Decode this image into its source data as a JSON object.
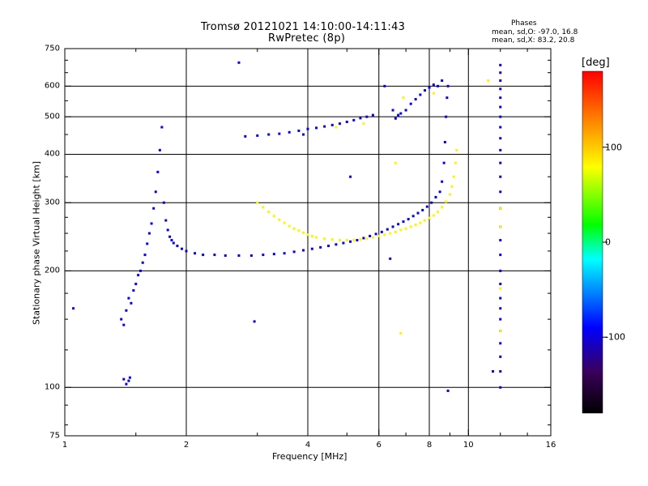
{
  "chart_data": {
    "type": "scatter",
    "title": "Tromsø 20121021 14:10:00-14:11:43",
    "subtitle": "RwPretec (8p)",
    "phase_header": "Phases",
    "stats": [
      "mean, sd,O: -97.0, 16.8",
      "mean, sd,X: 83.2, 20.8"
    ],
    "xlabel": "Frequency [MHz]",
    "ylabel": "Stationary phase Virtual Height [km]",
    "x_scale": "log",
    "y_scale": "log",
    "xlim": [
      1,
      16
    ],
    "ylim": [
      75,
      750
    ],
    "x_ticks": [
      1,
      2,
      4,
      6,
      8,
      10,
      16
    ],
    "y_ticks": [
      75,
      100,
      200,
      300,
      400,
      500,
      600,
      750
    ],
    "x_grid": [
      2,
      4,
      6,
      8,
      10
    ],
    "y_grid": [
      100,
      200,
      300,
      400,
      500,
      600
    ],
    "grid": true,
    "colorbar": {
      "label": "[deg]",
      "range": [
        -180,
        180
      ],
      "ticks": [
        100,
        0,
        -100
      ],
      "tick_labels": [
        "100",
        "0",
        "-100"
      ],
      "colors": [
        "#000000",
        "#3a005a",
        "#0000ff",
        "#00ffff",
        "#00ff00",
        "#ffff00",
        "#ff8000",
        "#ff0000"
      ]
    },
    "series": [
      {
        "mode": "O",
        "phase": -97,
        "points": [
          [
            1.05,
            160
          ],
          [
            1.38,
            150
          ],
          [
            1.4,
            145
          ],
          [
            1.42,
            158
          ],
          [
            1.44,
            170
          ],
          [
            1.46,
            165
          ],
          [
            1.48,
            178
          ],
          [
            1.5,
            185
          ],
          [
            1.52,
            195
          ],
          [
            1.54,
            200
          ],
          [
            1.56,
            210
          ],
          [
            1.58,
            220
          ],
          [
            1.6,
            235
          ],
          [
            1.62,
            250
          ],
          [
            1.64,
            265
          ],
          [
            1.66,
            290
          ],
          [
            1.68,
            320
          ],
          [
            1.7,
            360
          ],
          [
            1.72,
            410
          ],
          [
            1.74,
            470
          ],
          [
            1.76,
            300
          ],
          [
            1.78,
            270
          ],
          [
            1.8,
            255
          ],
          [
            1.82,
            245
          ],
          [
            1.84,
            240
          ],
          [
            1.86,
            236
          ],
          [
            1.9,
            232
          ],
          [
            1.95,
            228
          ],
          [
            2,
            225
          ],
          [
            2.1,
            222
          ],
          [
            2.2,
            220
          ],
          [
            2.35,
            220
          ],
          [
            2.5,
            219
          ],
          [
            2.7,
            219
          ],
          [
            2.9,
            219
          ],
          [
            3.1,
            220
          ],
          [
            3.3,
            221
          ],
          [
            3.5,
            222
          ],
          [
            3.7,
            224
          ],
          [
            3.9,
            226
          ],
          [
            4.1,
            228
          ],
          [
            4.3,
            230
          ],
          [
            4.5,
            232
          ],
          [
            4.7,
            234
          ],
          [
            4.9,
            236
          ],
          [
            5.1,
            238
          ],
          [
            5.3,
            240
          ],
          [
            5.5,
            243
          ],
          [
            5.7,
            246
          ],
          [
            5.9,
            249
          ],
          [
            6.1,
            252
          ],
          [
            6.3,
            256
          ],
          [
            6.5,
            260
          ],
          [
            6.7,
            264
          ],
          [
            6.9,
            268
          ],
          [
            7.1,
            272
          ],
          [
            7.3,
            277
          ],
          [
            7.5,
            282
          ],
          [
            7.7,
            287
          ],
          [
            7.9,
            293
          ],
          [
            8.1,
            300
          ],
          [
            8.3,
            310
          ],
          [
            8.5,
            320
          ],
          [
            8.6,
            340
          ],
          [
            8.7,
            380
          ],
          [
            8.75,
            430
          ],
          [
            8.8,
            500
          ],
          [
            8.85,
            560
          ],
          [
            8.9,
            600
          ],
          [
            8.6,
            620
          ],
          [
            8.4,
            600
          ],
          [
            2.8,
            445
          ],
          [
            3,
            447
          ],
          [
            3.2,
            450
          ],
          [
            3.4,
            452
          ],
          [
            3.6,
            456
          ],
          [
            3.8,
            460
          ],
          [
            4,
            465
          ],
          [
            4.2,
            468
          ],
          [
            4.4,
            472
          ],
          [
            4.6,
            476
          ],
          [
            4.8,
            480
          ],
          [
            5,
            485
          ],
          [
            5.2,
            490
          ],
          [
            5.4,
            496
          ],
          [
            5.6,
            500
          ],
          [
            5.8,
            505
          ],
          [
            6.2,
            600
          ],
          [
            6.5,
            520
          ],
          [
            6.6,
            495
          ],
          [
            6.7,
            505
          ],
          [
            6.8,
            510
          ],
          [
            7,
            520
          ],
          [
            7.2,
            540
          ],
          [
            7.4,
            555
          ],
          [
            7.6,
            570
          ],
          [
            7.8,
            585
          ],
          [
            8,
            595
          ],
          [
            8.2,
            605
          ],
          [
            1.4,
            105
          ],
          [
            1.42,
            102
          ],
          [
            1.44,
            104
          ],
          [
            1.45,
            106
          ],
          [
            12,
            680
          ],
          [
            12,
            650
          ],
          [
            12,
            620
          ],
          [
            12,
            590
          ],
          [
            12,
            560
          ],
          [
            12,
            530
          ],
          [
            12,
            500
          ],
          [
            12,
            470
          ],
          [
            12,
            440
          ],
          [
            12,
            410
          ],
          [
            12,
            380
          ],
          [
            12,
            350
          ],
          [
            12,
            320
          ],
          [
            12,
            290
          ],
          [
            12,
            260
          ],
          [
            12,
            240
          ],
          [
            12,
            220
          ],
          [
            12,
            200
          ],
          [
            12,
            185
          ],
          [
            12,
            170
          ],
          [
            12,
            160
          ],
          [
            12,
            150
          ],
          [
            12,
            140
          ],
          [
            12,
            130
          ],
          [
            12,
            120
          ],
          [
            12,
            110
          ],
          [
            12,
            100
          ],
          [
            11.5,
            110
          ],
          [
            2.7,
            690
          ],
          [
            2.95,
            148
          ],
          [
            3.9,
            450
          ],
          [
            5.1,
            350
          ],
          [
            6.4,
            215
          ],
          [
            8.9,
            98
          ]
        ]
      },
      {
        "mode": "X",
        "phase": 83,
        "points": [
          [
            3,
            300
          ],
          [
            3.1,
            292
          ],
          [
            3.2,
            284
          ],
          [
            3.3,
            277
          ],
          [
            3.4,
            271
          ],
          [
            3.5,
            266
          ],
          [
            3.6,
            261
          ],
          [
            3.7,
            257
          ],
          [
            3.8,
            254
          ],
          [
            3.9,
            251
          ],
          [
            4,
            248
          ],
          [
            4.1,
            246
          ],
          [
            4.2,
            244
          ],
          [
            4.4,
            242
          ],
          [
            4.6,
            241
          ],
          [
            4.8,
            240
          ],
          [
            5,
            240
          ],
          [
            5.2,
            240
          ],
          [
            5.4,
            241
          ],
          [
            5.6,
            242
          ],
          [
            5.8,
            244
          ],
          [
            6,
            246
          ],
          [
            6.2,
            248
          ],
          [
            6.4,
            250
          ],
          [
            6.6,
            252
          ],
          [
            6.8,
            255
          ],
          [
            7,
            257
          ],
          [
            7.2,
            260
          ],
          [
            7.4,
            263
          ],
          [
            7.6,
            266
          ],
          [
            7.8,
            270
          ],
          [
            8,
            274
          ],
          [
            8.2,
            278
          ],
          [
            8.4,
            284
          ],
          [
            8.6,
            292
          ],
          [
            8.8,
            302
          ],
          [
            9,
            315
          ],
          [
            9.1,
            330
          ],
          [
            9.2,
            350
          ],
          [
            9.3,
            380
          ],
          [
            9.35,
            410
          ],
          [
            8.2,
            575
          ],
          [
            6.9,
            560
          ],
          [
            6.6,
            380
          ],
          [
            5.5,
            480
          ],
          [
            11.2,
            620
          ],
          [
            12,
            290
          ],
          [
            12,
            180
          ],
          [
            12,
            140
          ],
          [
            12,
            260
          ],
          [
            4.7,
            470
          ],
          [
            6.8,
            138
          ]
        ]
      }
    ]
  }
}
